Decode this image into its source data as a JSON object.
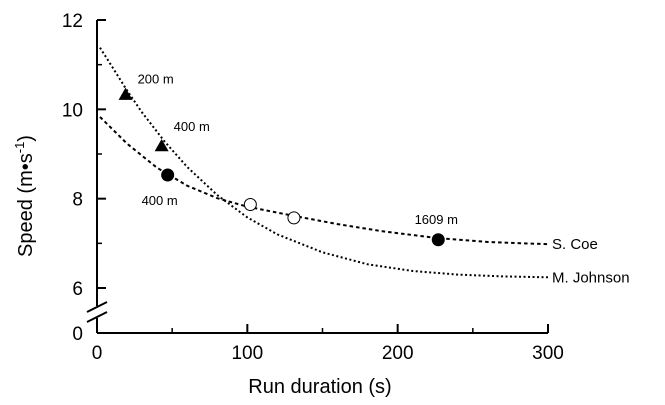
{
  "chart_data": {
    "type": "scatter",
    "title": "",
    "xlabel": "Run duration (s)",
    "ylabel": "Speed (m•s-1)",
    "ylabel_parts": {
      "base": "Speed (m•s",
      "sup": "-1",
      "close": ")"
    },
    "xlim": [
      0,
      300
    ],
    "ylim_break": {
      "low": [
        0,
        0
      ],
      "high": [
        6,
        12
      ]
    },
    "x_ticks": [
      "0",
      "100",
      "200",
      "300"
    ],
    "y_ticks": [
      "0",
      "6",
      "8",
      "10",
      "12"
    ],
    "grid": false,
    "series": [
      {
        "name": "M. Johnson",
        "curve_style": "dotted",
        "curve": [
          [
            2,
            11.38
          ],
          [
            10,
            10.96
          ],
          [
            20,
            10.42
          ],
          [
            30,
            9.93
          ],
          [
            45,
            9.28
          ],
          [
            60,
            8.71
          ],
          [
            80,
            8.08
          ],
          [
            100,
            7.58
          ],
          [
            120,
            7.2
          ],
          [
            150,
            6.8
          ],
          [
            180,
            6.53
          ],
          [
            210,
            6.38
          ],
          [
            240,
            6.3
          ],
          [
            270,
            6.26
          ],
          [
            300,
            6.24
          ]
        ],
        "points": [
          {
            "x": 19,
            "y": 10.33,
            "marker": "triangle-filled",
            "label": "200 m"
          },
          {
            "x": 43,
            "y": 9.18,
            "marker": "triangle-filled",
            "label": "400 m"
          }
        ]
      },
      {
        "name": "S. Coe",
        "curve_style": "dashed",
        "curve": [
          [
            2,
            9.83
          ],
          [
            20,
            9.23
          ],
          [
            40,
            8.69
          ],
          [
            60,
            8.29
          ],
          [
            80,
            8.01
          ],
          [
            100,
            7.82
          ],
          [
            130,
            7.62
          ],
          [
            160,
            7.43
          ],
          [
            190,
            7.27
          ],
          [
            226,
            7.12
          ],
          [
            260,
            7.03
          ],
          [
            300,
            6.98
          ]
        ],
        "points": [
          {
            "x": 47,
            "y": 8.53,
            "marker": "circle-filled",
            "label": "400 m"
          },
          {
            "x": 102,
            "y": 7.87,
            "marker": "circle-open",
            "label": ""
          },
          {
            "x": 131,
            "y": 7.57,
            "marker": "circle-open",
            "label": ""
          },
          {
            "x": 227,
            "y": 7.08,
            "marker": "circle-filled",
            "label": "1609 m"
          }
        ]
      }
    ]
  }
}
